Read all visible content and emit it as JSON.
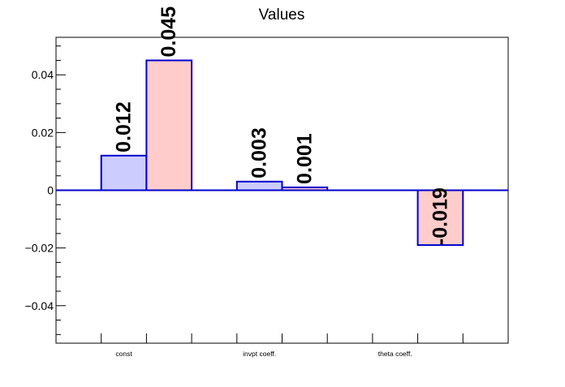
{
  "chart_data": {
    "type": "bar",
    "title": "Values",
    "xlabel": "",
    "ylabel": "",
    "categories": [
      "const",
      "invpt coeff.",
      "theta coeff."
    ],
    "series": [
      {
        "values": [
          0.012,
          0.003,
          null
        ],
        "labels": [
          "0.012",
          "0.003",
          ""
        ],
        "fill": "#ccccff",
        "stroke": "#0000cc"
      },
      {
        "values": [
          0.045,
          0.001,
          -0.019
        ],
        "labels": [
          "0.045",
          "0.001",
          "-0.019"
        ],
        "fill": "#ffcccc",
        "stroke": "#0000cc"
      }
    ],
    "ylim": [
      -0.053,
      0.053
    ],
    "yticks": [
      {
        "value": -0.04,
        "label": "−0.04"
      },
      {
        "value": -0.02,
        "label": "−0.02"
      },
      {
        "value": 0,
        "label": "0"
      },
      {
        "value": 0.02,
        "label": "0.02"
      },
      {
        "value": 0.04,
        "label": "0.04"
      }
    ],
    "grid": false,
    "legend": "none"
  }
}
